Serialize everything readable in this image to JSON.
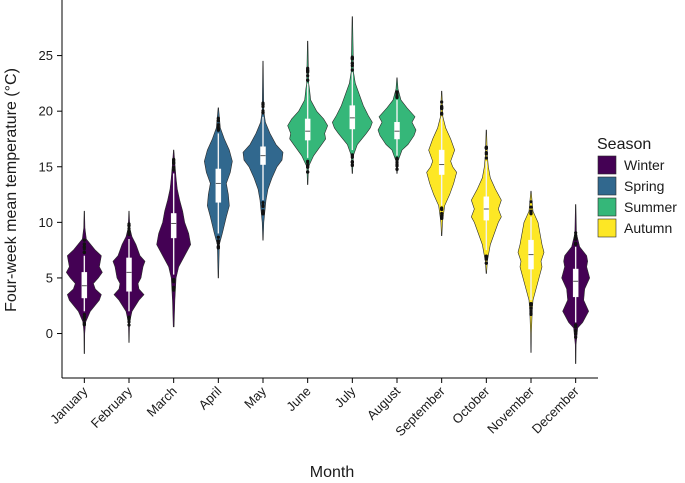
{
  "chart_data": {
    "type": "violin",
    "xlabel": "Month",
    "ylabel": "Four-week mean temperature (°C)",
    "ylim": [
      -4,
      30
    ],
    "yticks": [
      0,
      5,
      10,
      15,
      20,
      25
    ],
    "grid": false,
    "legend": {
      "title": "Season",
      "placement": "right",
      "entries": [
        {
          "name": "Winter",
          "color": "#440154"
        },
        {
          "name": "Spring",
          "color": "#31688e"
        },
        {
          "name": "Summer",
          "color": "#35b779"
        },
        {
          "name": "Autumn",
          "color": "#fde725"
        }
      ]
    },
    "season_colors": {
      "Winter": "#440154",
      "Spring": "#31688e",
      "Summer": "#35b779",
      "Autumn": "#fde725"
    },
    "categories": [
      "January",
      "February",
      "March",
      "April",
      "May",
      "June",
      "July",
      "August",
      "September",
      "October",
      "November",
      "December"
    ],
    "violins": [
      {
        "month": "January",
        "season": "Winter",
        "min": -1.8,
        "max": 11.0,
        "q1": 3.2,
        "median": 4.3,
        "q3": 5.5,
        "whisker_low": 2.0,
        "whisker_high": 7.0,
        "density": [
          [
            -1.8,
            0.01
          ],
          [
            0,
            0.02
          ],
          [
            1,
            0.06
          ],
          [
            2,
            0.3
          ],
          [
            3,
            0.75
          ],
          [
            3.5,
            0.85
          ],
          [
            4,
            0.55
          ],
          [
            4.5,
            0.45
          ],
          [
            5,
            0.7
          ],
          [
            5.5,
            0.9
          ],
          [
            6,
            0.75
          ],
          [
            7,
            0.85
          ],
          [
            7.5,
            0.55
          ],
          [
            8.5,
            0.1
          ],
          [
            9.5,
            0.03
          ],
          [
            11,
            0.01
          ]
        ]
      },
      {
        "month": "February",
        "season": "Winter",
        "min": -0.8,
        "max": 11.0,
        "q1": 3.8,
        "median": 5.5,
        "q3": 6.8,
        "whisker_low": 2.0,
        "whisker_high": 8.5,
        "density": [
          [
            -0.8,
            0.01
          ],
          [
            1,
            0.03
          ],
          [
            2,
            0.15
          ],
          [
            3,
            0.5
          ],
          [
            3.5,
            0.75
          ],
          [
            4,
            0.5
          ],
          [
            4.5,
            0.45
          ],
          [
            5,
            0.6
          ],
          [
            6,
            0.7
          ],
          [
            6.5,
            0.8
          ],
          [
            7,
            0.55
          ],
          [
            8,
            0.35
          ],
          [
            8.7,
            0.15
          ],
          [
            9.5,
            0.04
          ],
          [
            11,
            0.01
          ]
        ]
      },
      {
        "month": "March",
        "season": "Winter",
        "min": 0.6,
        "max": 16.5,
        "q1": 8.6,
        "median": 9.9,
        "q3": 10.8,
        "whisker_low": 5.3,
        "whisker_high": 14.4,
        "density": [
          [
            0.6,
            0.02
          ],
          [
            3,
            0.06
          ],
          [
            5,
            0.12
          ],
          [
            6,
            0.25
          ],
          [
            7,
            0.55
          ],
          [
            8,
            0.85
          ],
          [
            9,
            0.75
          ],
          [
            10,
            0.55
          ],
          [
            11,
            0.45
          ],
          [
            12,
            0.3
          ],
          [
            13,
            0.18
          ],
          [
            14,
            0.12
          ],
          [
            15.5,
            0.05
          ],
          [
            16.5,
            0.01
          ]
        ]
      },
      {
        "month": "April",
        "season": "Spring",
        "min": 5.0,
        "max": 20.3,
        "q1": 11.8,
        "median": 13.5,
        "q3": 14.8,
        "whisker_low": 9.0,
        "whisker_high": 18.0,
        "density": [
          [
            5,
            0.01
          ],
          [
            8,
            0.05
          ],
          [
            9,
            0.2
          ],
          [
            10.5,
            0.4
          ],
          [
            11.5,
            0.55
          ],
          [
            12.5,
            0.5
          ],
          [
            13.5,
            0.4
          ],
          [
            14.5,
            0.6
          ],
          [
            15.5,
            0.7
          ],
          [
            16.5,
            0.55
          ],
          [
            17.5,
            0.3
          ],
          [
            18.5,
            0.1
          ],
          [
            20.3,
            0.01
          ]
        ]
      },
      {
        "month": "May",
        "season": "Spring",
        "min": 8.4,
        "max": 24.5,
        "q1": 15.2,
        "median": 16.0,
        "q3": 16.8,
        "whisker_low": 12.0,
        "whisker_high": 19.5,
        "density": [
          [
            8.4,
            0.01
          ],
          [
            10,
            0.04
          ],
          [
            12,
            0.15
          ],
          [
            13,
            0.25
          ],
          [
            14,
            0.45
          ],
          [
            15,
            0.7
          ],
          [
            15.6,
            0.95
          ],
          [
            16.3,
            1.0
          ],
          [
            17,
            0.65
          ],
          [
            18,
            0.35
          ],
          [
            19,
            0.12
          ],
          [
            20,
            0.04
          ],
          [
            24.5,
            0.01
          ]
        ]
      },
      {
        "month": "June",
        "season": "Summer",
        "min": 13.4,
        "max": 26.3,
        "q1": 17.4,
        "median": 18.2,
        "q3": 19.3,
        "whisker_low": 15.8,
        "whisker_high": 22.5,
        "density": [
          [
            13.4,
            0.01
          ],
          [
            15,
            0.04
          ],
          [
            16,
            0.3
          ],
          [
            17,
            0.7
          ],
          [
            17.5,
            0.9
          ],
          [
            18,
            0.85
          ],
          [
            18.7,
            1.0
          ],
          [
            19.3,
            0.8
          ],
          [
            20,
            0.45
          ],
          [
            21,
            0.15
          ],
          [
            22,
            0.09
          ],
          [
            22.5,
            0.05
          ],
          [
            26.3,
            0.01
          ]
        ]
      },
      {
        "month": "July",
        "season": "Summer",
        "min": 14.4,
        "max": 28.5,
        "q1": 18.4,
        "median": 19.4,
        "q3": 20.5,
        "whisker_low": 16.5,
        "whisker_high": 23.5,
        "density": [
          [
            14.4,
            0.01
          ],
          [
            16,
            0.05
          ],
          [
            17,
            0.25
          ],
          [
            18,
            0.7
          ],
          [
            18.5,
            0.9
          ],
          [
            19,
            1.0
          ],
          [
            19.6,
            0.8
          ],
          [
            20.5,
            0.55
          ],
          [
            21.5,
            0.35
          ],
          [
            22.5,
            0.15
          ],
          [
            23.5,
            0.06
          ],
          [
            28.5,
            0.01
          ]
        ]
      },
      {
        "month": "August",
        "season": "Summer",
        "min": 14.4,
        "max": 23.0,
        "q1": 17.5,
        "median": 18.2,
        "q3": 19.0,
        "whisker_low": 16.0,
        "whisker_high": 21.0,
        "density": [
          [
            14.4,
            0.01
          ],
          [
            15.5,
            0.05
          ],
          [
            16.5,
            0.25
          ],
          [
            17,
            0.55
          ],
          [
            17.8,
            0.85
          ],
          [
            18.3,
            0.95
          ],
          [
            19,
            0.75
          ],
          [
            19.5,
            0.9
          ],
          [
            20.3,
            0.5
          ],
          [
            21,
            0.2
          ],
          [
            22,
            0.05
          ],
          [
            23,
            0.01
          ]
        ]
      },
      {
        "month": "September",
        "season": "Autumn",
        "min": 8.8,
        "max": 21.8,
        "q1": 14.3,
        "median": 15.2,
        "q3": 16.5,
        "whisker_low": 11.5,
        "whisker_high": 19.5,
        "density": [
          [
            8.8,
            0.01
          ],
          [
            10,
            0.04
          ],
          [
            11.5,
            0.15
          ],
          [
            12.5,
            0.4
          ],
          [
            13.5,
            0.6
          ],
          [
            14.5,
            0.75
          ],
          [
            15,
            0.55
          ],
          [
            15.5,
            0.45
          ],
          [
            16.5,
            0.65
          ],
          [
            17.5,
            0.45
          ],
          [
            18.5,
            0.2
          ],
          [
            19.5,
            0.06
          ],
          [
            21.8,
            0.01
          ]
        ]
      },
      {
        "month": "October",
        "season": "Autumn",
        "min": 5.4,
        "max": 18.3,
        "q1": 10.2,
        "median": 11.2,
        "q3": 12.3,
        "whisker_low": 7.5,
        "whisker_high": 15.5,
        "density": [
          [
            5.4,
            0.01
          ],
          [
            6.5,
            0.05
          ],
          [
            8,
            0.2
          ],
          [
            9,
            0.4
          ],
          [
            10,
            0.6
          ],
          [
            10.5,
            0.75
          ],
          [
            11.2,
            0.6
          ],
          [
            12,
            0.75
          ],
          [
            13,
            0.45
          ],
          [
            14,
            0.2
          ],
          [
            15,
            0.1
          ],
          [
            16,
            0.05
          ],
          [
            18.3,
            0.01
          ]
        ]
      },
      {
        "month": "November",
        "season": "Autumn",
        "min": -1.7,
        "max": 12.8,
        "q1": 5.8,
        "median": 7.1,
        "q3": 8.4,
        "whisker_low": 3.0,
        "whisker_high": 10.5,
        "density": [
          [
            -1.7,
            0.01
          ],
          [
            0,
            0.02
          ],
          [
            2,
            0.06
          ],
          [
            3,
            0.1
          ],
          [
            4,
            0.25
          ],
          [
            5,
            0.4
          ],
          [
            6,
            0.55
          ],
          [
            6.5,
            0.5
          ],
          [
            7.3,
            0.65
          ],
          [
            8,
            0.55
          ],
          [
            9,
            0.45
          ],
          [
            10,
            0.35
          ],
          [
            11,
            0.1
          ],
          [
            12.8,
            0.01
          ]
        ]
      },
      {
        "month": "December",
        "season": "Winter",
        "min": -2.7,
        "max": 11.6,
        "q1": 3.3,
        "median": 4.7,
        "q3": 5.8,
        "whisker_low": 1.0,
        "whisker_high": 7.8,
        "density": [
          [
            -2.7,
            0.01
          ],
          [
            -1,
            0.02
          ],
          [
            0.5,
            0.1
          ],
          [
            1,
            0.35
          ],
          [
            2,
            0.65
          ],
          [
            3,
            0.4
          ],
          [
            4,
            0.45
          ],
          [
            5,
            0.7
          ],
          [
            6,
            0.55
          ],
          [
            6.5,
            0.6
          ],
          [
            7,
            0.55
          ],
          [
            7.8,
            0.2
          ],
          [
            9,
            0.04
          ],
          [
            11.6,
            0.01
          ]
        ]
      }
    ]
  }
}
